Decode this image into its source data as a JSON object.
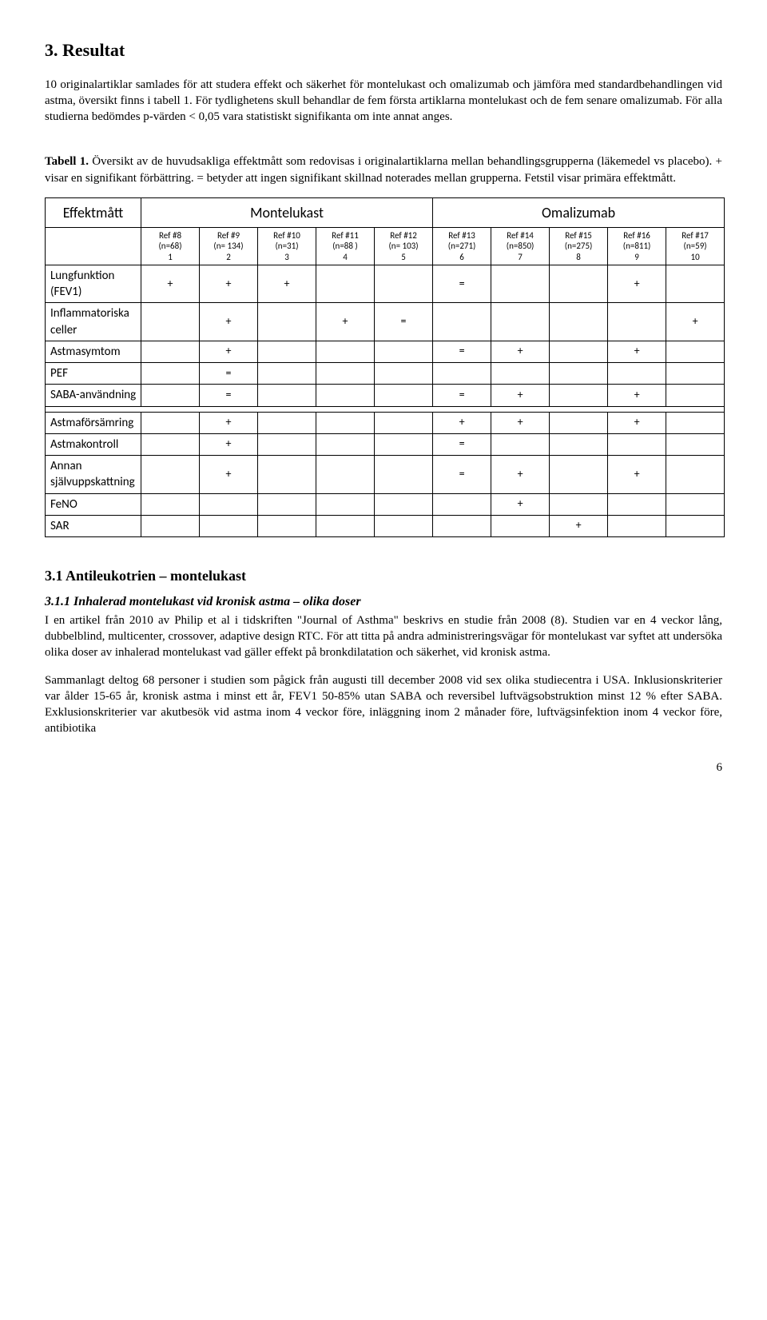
{
  "heading": "3. Resultat",
  "para1": "10 originalartiklar samlades för att studera effekt och säkerhet för montelukast och omalizumab och jämföra med standardbehandlingen vid astma, översikt finns i tabell 1. För tydlighetens skull behandlar de fem första artiklarna montelukast och de fem senare omalizumab. För alla studierna bedömdes p-värden < 0,05 vara statistiskt signifikanta om inte annat anges.",
  "table_caption_lead": "Tabell 1.",
  "table_caption": " Översikt av de huvudsakliga effektmått som redovisas i originalartiklarna mellan behandlingsgrupperna (läkemedel vs placebo). + visar en signifikant förbättring. = betyder att ingen signifikant skillnad noterades mellan grupperna. Fetstil visar primära effektmått.",
  "col_head_effekt": "Effektmått",
  "col_head_mont": "Montelukast",
  "col_head_omal": "Omalizumab",
  "refs": [
    {
      "a": "Ref #8",
      "b": "(n=68)",
      "c": "1"
    },
    {
      "a": "Ref #9",
      "b": "(n= 134)",
      "c": "2"
    },
    {
      "a": "Ref #10",
      "b": "(n=31)",
      "c": "3"
    },
    {
      "a": "Ref #11",
      "b": "(n=88 )",
      "c": "4"
    },
    {
      "a": "Ref #12",
      "b": "(n= 103)",
      "c": "5"
    },
    {
      "a": "Ref #13",
      "b": "(n=271)",
      "c": "6"
    },
    {
      "a": "Ref #14",
      "b": "(n=850)",
      "c": "7"
    },
    {
      "a": "Ref #15",
      "b": "(n=275)",
      "c": "8"
    },
    {
      "a": "Ref #16",
      "b": "(n=811)",
      "c": "9"
    },
    {
      "a": "Ref #17",
      "b": "(n=59)",
      "c": "10"
    }
  ],
  "rows_top": [
    {
      "label": "Lungfunktion (FEV1)",
      "cells": [
        "+",
        "+",
        "+",
        "",
        "",
        "=",
        "",
        "",
        "+",
        ""
      ]
    },
    {
      "label": "Inflammatoriska celler",
      "cells": [
        "",
        "+",
        "",
        "+",
        "=",
        "",
        "",
        "",
        "",
        "+"
      ]
    },
    {
      "label": "Astmasymtom",
      "cells": [
        "",
        "+",
        "",
        "",
        "",
        "=",
        "+",
        "",
        "+",
        ""
      ]
    },
    {
      "label": "PEF",
      "cells": [
        "",
        "=",
        "",
        "",
        "",
        "",
        "",
        "",
        "",
        ""
      ]
    },
    {
      "label": "SABA-användning",
      "cells": [
        "",
        "=",
        "",
        "",
        "",
        "=",
        "+",
        "",
        "+",
        ""
      ]
    }
  ],
  "rows_bottom": [
    {
      "label": "Astmaförsämring",
      "cells": [
        "",
        "+",
        "",
        "",
        "",
        "+",
        "+",
        "",
        "+",
        ""
      ]
    },
    {
      "label": "Astmakontroll",
      "cells": [
        "",
        "+",
        "",
        "",
        "",
        "=",
        "",
        "",
        "",
        ""
      ]
    },
    {
      "label": "Annan självuppskattning",
      "cells": [
        "",
        "+",
        "",
        "",
        "",
        "=",
        "+",
        "",
        "+",
        ""
      ]
    },
    {
      "label": "FeNO",
      "cells": [
        "",
        "",
        "",
        "",
        "",
        "",
        "+",
        "",
        "",
        ""
      ]
    },
    {
      "label": "SAR",
      "cells": [
        "",
        "",
        "",
        "",
        "",
        "",
        "",
        "+",
        "",
        ""
      ]
    }
  ],
  "sub_heading": "3.1 Antileukotrien – montelukast",
  "sub_sub_heading": "3.1.1 Inhalerad montelukast vid kronisk astma – olika doser",
  "para2": "I en artikel från 2010 av Philip et al i tidskriften \"Journal of Asthma\" beskrivs en studie från 2008 (8). Studien var en 4 veckor lång, dubbelblind, multicenter, crossover, adaptive design RTC. För att titta på andra administreringsvägar för montelukast var syftet att undersöka olika doser av inhalerad montelukast vad gäller effekt på bronkdilatation och säkerhet, vid kronisk astma.",
  "para3": "Sammanlagt deltog 68 personer i studien som pågick från augusti till december 2008 vid sex olika studiecentra i USA. Inklusionskriterier var ålder 15-65 år, kronisk astma i minst ett år, FEV1 50-85% utan SABA och reversibel luftvägsobstruktion minst 12 % efter SABA. Exklusionskriterier var akutbesök vid astma inom 4 veckor före, inläggning inom 2 månader före, luftvägsinfektion inom 4 veckor före, antibiotika",
  "page_number": "6"
}
